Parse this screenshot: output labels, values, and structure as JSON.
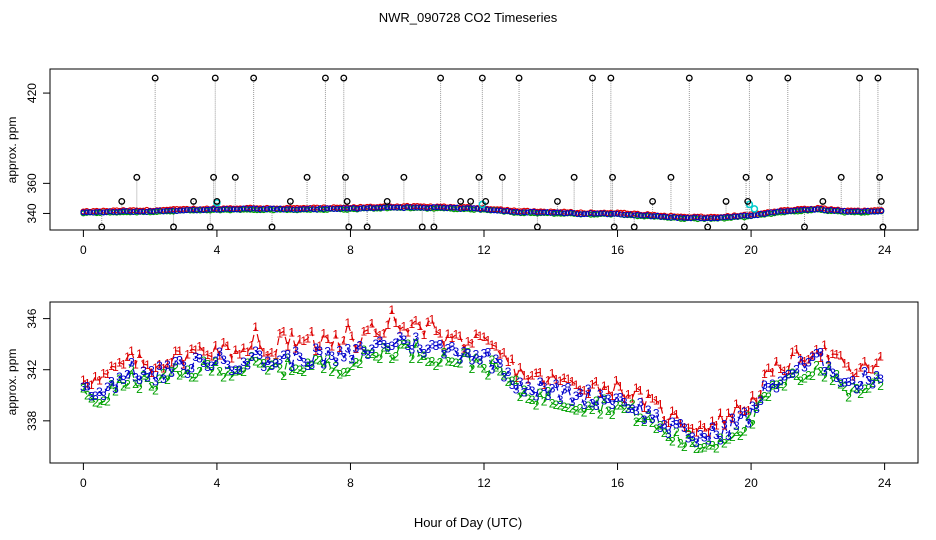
{
  "chart_data": [
    {
      "id": "top",
      "type": "scatter",
      "title": "NWR_090728  CO2 Timeseries",
      "xlabel": "",
      "ylabel": "approx. ppm",
      "xlim": [
        -1,
        25
      ],
      "ylim": [
        329,
        436
      ],
      "x_ticks": [
        0,
        4,
        8,
        12,
        16,
        20,
        24
      ],
      "y_ticks": [
        340,
        360,
        420
      ],
      "outliers": [
        {
          "x": 0.55,
          "y": 331
        },
        {
          "x": 1.15,
          "y": 348
        },
        {
          "x": 1.6,
          "y": 364
        },
        {
          "x": 2.15,
          "y": 430
        },
        {
          "x": 2.7,
          "y": 331
        },
        {
          "x": 3.3,
          "y": 348
        },
        {
          "x": 3.8,
          "y": 331
        },
        {
          "x": 3.9,
          "y": 364
        },
        {
          "x": 3.95,
          "y": 430
        },
        {
          "x": 4.0,
          "y": 348
        },
        {
          "x": 4.55,
          "y": 364
        },
        {
          "x": 5.1,
          "y": 430
        },
        {
          "x": 5.65,
          "y": 331
        },
        {
          "x": 6.2,
          "y": 348
        },
        {
          "x": 6.7,
          "y": 364
        },
        {
          "x": 7.25,
          "y": 430
        },
        {
          "x": 7.8,
          "y": 430
        },
        {
          "x": 7.85,
          "y": 364
        },
        {
          "x": 7.9,
          "y": 348
        },
        {
          "x": 7.95,
          "y": 331
        },
        {
          "x": 8.5,
          "y": 331
        },
        {
          "x": 9.1,
          "y": 348
        },
        {
          "x": 9.6,
          "y": 364
        },
        {
          "x": 10.15,
          "y": 331
        },
        {
          "x": 10.5,
          "y": 331
        },
        {
          "x": 10.7,
          "y": 430
        },
        {
          "x": 11.3,
          "y": 348
        },
        {
          "x": 11.6,
          "y": 348
        },
        {
          "x": 11.85,
          "y": 364
        },
        {
          "x": 11.95,
          "y": 430
        },
        {
          "x": 12.05,
          "y": 348
        },
        {
          "x": 12.55,
          "y": 364
        },
        {
          "x": 13.05,
          "y": 430
        },
        {
          "x": 13.6,
          "y": 331
        },
        {
          "x": 14.2,
          "y": 348
        },
        {
          "x": 14.7,
          "y": 364
        },
        {
          "x": 15.25,
          "y": 430
        },
        {
          "x": 15.8,
          "y": 430
        },
        {
          "x": 15.85,
          "y": 364
        },
        {
          "x": 15.9,
          "y": 331
        },
        {
          "x": 16.5,
          "y": 331
        },
        {
          "x": 17.05,
          "y": 348
        },
        {
          "x": 17.6,
          "y": 364
        },
        {
          "x": 18.15,
          "y": 430
        },
        {
          "x": 18.7,
          "y": 331
        },
        {
          "x": 19.25,
          "y": 348
        },
        {
          "x": 19.8,
          "y": 331
        },
        {
          "x": 19.85,
          "y": 364
        },
        {
          "x": 19.9,
          "y": 348
        },
        {
          "x": 19.95,
          "y": 430
        },
        {
          "x": 20.55,
          "y": 364
        },
        {
          "x": 21.1,
          "y": 430
        },
        {
          "x": 21.6,
          "y": 331
        },
        {
          "x": 22.15,
          "y": 348
        },
        {
          "x": 22.7,
          "y": 364
        },
        {
          "x": 23.25,
          "y": 430
        },
        {
          "x": 23.8,
          "y": 430
        },
        {
          "x": 23.85,
          "y": 364
        },
        {
          "x": 23.9,
          "y": 348
        },
        {
          "x": 23.95,
          "y": 331
        }
      ],
      "cyan_points": [
        {
          "x": 4.0,
          "y": 347
        },
        {
          "x": 11.95,
          "y": 346
        },
        {
          "x": 19.95,
          "y": 346
        },
        {
          "x": 20.1,
          "y": 343
        }
      ],
      "baseline_profile": [
        [
          0,
          340.6
        ],
        [
          1,
          341.2
        ],
        [
          2,
          341.4
        ],
        [
          3,
          342.2
        ],
        [
          4,
          342.6
        ],
        [
          5,
          343.0
        ],
        [
          6,
          342.8
        ],
        [
          7,
          343.0
        ],
        [
          8,
          343.2
        ],
        [
          9,
          344.0
        ],
        [
          10,
          344.0
        ],
        [
          11,
          343.6
        ],
        [
          12,
          343.0
        ],
        [
          13,
          341.0
        ],
        [
          14,
          340.5
        ],
        [
          15,
          339.8
        ],
        [
          16,
          339.8
        ],
        [
          17,
          338.4
        ],
        [
          18,
          337.0
        ],
        [
          19,
          337.0
        ],
        [
          20,
          338.5
        ],
        [
          21,
          341.5
        ],
        [
          22,
          342.8
        ],
        [
          23,
          341.0
        ],
        [
          23.9,
          341.8
        ]
      ]
    },
    {
      "id": "bottom",
      "type": "scatter",
      "title": "",
      "xlabel": "Hour of Day (UTC)",
      "ylabel": "approx. ppm",
      "xlim": [
        -1,
        25
      ],
      "ylim": [
        334.7,
        347.3
      ],
      "x_ticks": [
        0,
        4,
        8,
        12,
        16,
        20,
        24
      ],
      "y_ticks": [
        338,
        342,
        346
      ],
      "series": [
        {
          "name": "1",
          "marker": "1",
          "color": "#dd0000",
          "offset": 0.9
        },
        {
          "name": "2",
          "marker": "2",
          "color": "#00a000",
          "offset": -0.6
        },
        {
          "name": "3",
          "marker": "3",
          "color": "#0000cc",
          "offset": 0
        }
      ],
      "base_curve": [
        [
          0,
          340.6
        ],
        [
          0.5,
          340.2
        ],
        [
          1,
          341.2
        ],
        [
          1.5,
          342.0
        ],
        [
          2,
          341.3
        ],
        [
          2.5,
          341.9
        ],
        [
          3,
          342.2
        ],
        [
          3.5,
          342.6
        ],
        [
          4,
          342.8
        ],
        [
          4.5,
          342.5
        ],
        [
          5,
          343.0
        ],
        [
          5.5,
          342.6
        ],
        [
          6,
          342.8
        ],
        [
          6.5,
          342.9
        ],
        [
          7,
          343.0
        ],
        [
          7.5,
          342.8
        ],
        [
          8,
          343.1
        ],
        [
          8.5,
          343.6
        ],
        [
          9,
          344.0
        ],
        [
          9.5,
          344.3
        ],
        [
          10,
          344.0
        ],
        [
          10.5,
          343.6
        ],
        [
          11,
          343.5
        ],
        [
          11.5,
          343.4
        ],
        [
          12,
          343.0
        ],
        [
          12.5,
          342.3
        ],
        [
          13,
          341.0
        ],
        [
          13.5,
          340.5
        ],
        [
          14,
          340.3
        ],
        [
          14.5,
          340.1
        ],
        [
          15,
          339.9
        ],
        [
          15.5,
          339.8
        ],
        [
          16,
          339.7
        ],
        [
          16.5,
          339.2
        ],
        [
          17,
          338.4
        ],
        [
          17.5,
          337.5
        ],
        [
          18,
          337.0
        ],
        [
          18.5,
          336.6
        ],
        [
          19,
          337.0
        ],
        [
          19.5,
          337.8
        ],
        [
          20,
          338.5
        ],
        [
          20.5,
          340.6
        ],
        [
          21,
          341.5
        ],
        [
          21.5,
          342.2
        ],
        [
          22,
          342.8
        ],
        [
          22.5,
          342.0
        ],
        [
          23,
          340.8
        ],
        [
          23.5,
          341.3
        ],
        [
          23.9,
          341.8
        ]
      ]
    }
  ]
}
